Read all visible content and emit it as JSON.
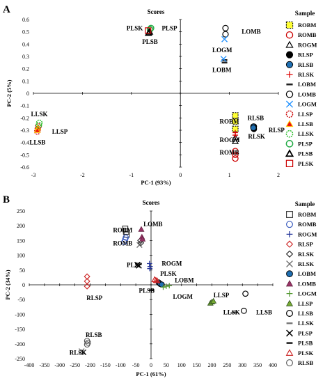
{
  "chart_data": [
    {
      "panel": "A",
      "type": "scatter",
      "title": "Scores",
      "xlabel": "PC-1 (93%)",
      "ylabel": "PC-2 (5%)",
      "xlim": [
        -3,
        2
      ],
      "ylim": [
        -0.6,
        0.6
      ],
      "xticks": [
        -3,
        -2,
        -1,
        0,
        1,
        2
      ],
      "yticks": [
        -0.6,
        -0.5,
        -0.4,
        -0.3,
        -0.2,
        -0.1,
        0,
        0.1,
        0.2,
        0.3,
        0.4,
        0.5,
        0.6
      ],
      "legend_title": "Sample",
      "legend_position": "right",
      "grid": false,
      "series": [
        {
          "name": "ROBM",
          "marker": "square-dashed-yellow",
          "points": [
            [
              1.12,
              -0.18
            ],
            [
              1.12,
              -0.23
            ],
            [
              1.12,
              -0.29
            ]
          ]
        },
        {
          "name": "ROMB",
          "marker": "circle-red",
          "points": [
            [
              1.12,
              -0.47
            ],
            [
              1.12,
              -0.5
            ],
            [
              1.12,
              -0.53
            ]
          ]
        },
        {
          "name": "ROGM",
          "marker": "triangle-open",
          "points": [
            [
              1.12,
              -0.36
            ],
            [
              1.12,
              -0.39
            ]
          ]
        },
        {
          "name": "RLSP",
          "marker": "circle-black",
          "points": [
            [
              1.5,
              -0.27
            ],
            [
              1.5,
              -0.29
            ]
          ]
        },
        {
          "name": "RLSB",
          "marker": "circle-blue",
          "points": [
            [
              1.49,
              -0.27
            ],
            [
              1.49,
              -0.28
            ]
          ]
        },
        {
          "name": "RLSK",
          "marker": "plus-red",
          "points": [
            [
              1.12,
              -0.32
            ],
            [
              1.12,
              -0.34
            ]
          ]
        },
        {
          "name": "LOBM",
          "marker": "dash-black",
          "points": [
            [
              0.9,
              0.25
            ],
            [
              0.9,
              0.27
            ]
          ]
        },
        {
          "name": "LOMB",
          "marker": "circle-open",
          "points": [
            [
              0.92,
              0.53
            ],
            [
              0.92,
              0.48
            ]
          ]
        },
        {
          "name": "LOGM",
          "marker": "x-blue",
          "points": [
            [
              0.88,
              0.28
            ],
            [
              0.9,
              0.44
            ]
          ]
        },
        {
          "name": "LLSP",
          "marker": "circle-red-dashed",
          "points": [
            [
              -2.9,
              -0.27
            ],
            [
              -2.91,
              -0.29
            ],
            [
              -2.92,
              -0.31
            ]
          ]
        },
        {
          "name": "LLSB",
          "marker": "triangle-red-yellow",
          "points": [
            [
              -2.91,
              -0.28
            ],
            [
              -2.92,
              -0.3
            ]
          ]
        },
        {
          "name": "LLSK",
          "marker": "circle-green-dashed",
          "points": [
            [
              -2.88,
              -0.24
            ],
            [
              -2.89,
              -0.26
            ]
          ]
        },
        {
          "name": "PLSP",
          "marker": "circle-green",
          "points": [
            [
              -0.6,
              0.53
            ],
            [
              -0.62,
              0.52
            ]
          ]
        },
        {
          "name": "PLSB",
          "marker": "triangle-black",
          "points": [
            [
              -0.63,
              0.5
            ],
            [
              -0.65,
              0.49
            ]
          ]
        },
        {
          "name": "PLSK",
          "marker": "square-red",
          "points": [
            [
              -0.66,
              0.51
            ]
          ]
        }
      ],
      "labels": [
        {
          "text": "PLSK",
          "x": -1.1,
          "y": 0.53
        },
        {
          "text": "PLSP",
          "x": -0.38,
          "y": 0.53
        },
        {
          "text": "PLSB",
          "x": -0.78,
          "y": 0.42
        },
        {
          "text": "LOMB",
          "x": 1.25,
          "y": 0.5
        },
        {
          "text": "LOGM",
          "x": 0.65,
          "y": 0.35
        },
        {
          "text": "LOBM",
          "x": 0.65,
          "y": 0.19
        },
        {
          "text": "LLSK",
          "x": -3.05,
          "y": -0.17
        },
        {
          "text": "LLSP",
          "x": -2.62,
          "y": -0.31
        },
        {
          "text": "LLSB",
          "x": -3.08,
          "y": -0.4
        },
        {
          "text": "RLSB",
          "x": 1.37,
          "y": -0.2
        },
        {
          "text": "ROBM",
          "x": 0.8,
          "y": -0.23
        },
        {
          "text": "RLSP",
          "x": 1.8,
          "y": -0.3
        },
        {
          "text": "RLSK",
          "x": 1.38,
          "y": -0.35
        },
        {
          "text": "ROGM",
          "x": 0.8,
          "y": -0.38
        },
        {
          "text": "ROMB",
          "x": 0.8,
          "y": -0.48
        }
      ]
    },
    {
      "panel": "B",
      "type": "scatter",
      "title": "Scores",
      "xlabel": "PC-1 (61%)",
      "ylabel": "PC-2 (34%)",
      "xlim": [
        -400,
        400
      ],
      "ylim": [
        -250,
        250
      ],
      "xticks": [
        -400,
        -350,
        -300,
        -250,
        -200,
        -150,
        -100,
        -50,
        0,
        50,
        100,
        150,
        200,
        250,
        300,
        350,
        400
      ],
      "yticks": [
        -250,
        -200,
        -150,
        -100,
        -50,
        0,
        50,
        100,
        150,
        200,
        250
      ],
      "legend_title": "Sample",
      "legend_position": "right",
      "grid": false,
      "series": [
        {
          "name": "ROBM",
          "marker": "square-open",
          "points": [
            [
              -85,
              190
            ],
            [
              -82,
              180
            ],
            [
              -80,
              170
            ]
          ]
        },
        {
          "name": "ROMB",
          "marker": "circle-blue-open",
          "points": [
            [
              -88,
              145
            ],
            [
              -85,
              153
            ],
            [
              -83,
              160
            ]
          ]
        },
        {
          "name": "ROGM",
          "marker": "plus-blue",
          "points": [
            [
              -5,
              72
            ],
            [
              -3,
              62
            ],
            [
              -4,
              55
            ]
          ]
        },
        {
          "name": "RLSP",
          "marker": "diamond-red-open",
          "points": [
            [
              -210,
              28
            ],
            [
              -210,
              12
            ],
            [
              -210,
              -5
            ]
          ]
        },
        {
          "name": "RLSK",
          "marker": "diamond-black-open",
          "points": [
            [
              -35,
              150
            ],
            [
              -33,
              142
            ]
          ]
        },
        {
          "name": "RLSK",
          "marker": "x-gray",
          "points": [
            [
              -38,
              135
            ],
            [
              -222,
              -228
            ],
            [
              -228,
              -225
            ]
          ]
        },
        {
          "name": "LOBM",
          "marker": "circle-blue",
          "points": [
            [
              25,
              8
            ],
            [
              30,
              3
            ],
            [
              35,
              1
            ]
          ]
        },
        {
          "name": "LOMB",
          "marker": "triangle-purple",
          "points": [
            [
              -32,
              188
            ],
            [
              -30,
              162
            ],
            [
              -28,
              155
            ]
          ]
        },
        {
          "name": "LOGM",
          "marker": "plus-green",
          "points": [
            [
              40,
              -8
            ],
            [
              50,
              -5
            ],
            [
              60,
              -3
            ]
          ]
        },
        {
          "name": "LLSP",
          "marker": "triangle-green",
          "points": [
            [
              195,
              -62
            ],
            [
              200,
              -58
            ],
            [
              205,
              -55
            ]
          ]
        },
        {
          "name": "LLSB",
          "marker": "circle-open",
          "points": [
            [
              305,
              -88
            ],
            [
              310,
              -30
            ]
          ]
        },
        {
          "name": "LLSK",
          "marker": "dash-gray",
          "points": [
            [
              270,
              -95
            ],
            [
              275,
              -93
            ]
          ]
        },
        {
          "name": "PLSP",
          "marker": "x-black",
          "points": [
            [
              -45,
              68
            ],
            [
              -40,
              65
            ]
          ]
        },
        {
          "name": "PLSB",
          "marker": "dash-black",
          "points": [
            [
              2,
              -18
            ]
          ]
        },
        {
          "name": "PLSK",
          "marker": "triangle-red-open",
          "points": [
            [
              12,
              18
            ],
            [
              16,
              15
            ],
            [
              20,
              14
            ]
          ]
        },
        {
          "name": "RLSB",
          "marker": "circle-gray-open",
          "points": [
            [
              -210,
              -190
            ],
            [
              -207,
              -196
            ],
            [
              -210,
              -202
            ]
          ]
        }
      ],
      "labels": [
        {
          "text": "LOMB",
          "x": -25,
          "y": 205
        },
        {
          "text": "ROBM",
          "x": -125,
          "y": 185
        },
        {
          "text": "ROMB",
          "x": -125,
          "y": 140
        },
        {
          "text": "PLSP",
          "x": -80,
          "y": 67
        },
        {
          "text": "ROGM",
          "x": 35,
          "y": 72
        },
        {
          "text": "PLSK",
          "x": 30,
          "y": 38
        },
        {
          "text": "LOBM",
          "x": 78,
          "y": 15
        },
        {
          "text": "PLSB",
          "x": -40,
          "y": -20
        },
        {
          "text": "LOGM",
          "x": 72,
          "y": -40
        },
        {
          "text": "RLSP",
          "x": -212,
          "y": -45
        },
        {
          "text": "LLSP",
          "x": 205,
          "y": -35
        },
        {
          "text": "LLSK",
          "x": 237,
          "y": -93
        },
        {
          "text": "LLSB",
          "x": 345,
          "y": -93
        },
        {
          "text": "RLSB",
          "x": -215,
          "y": -170
        },
        {
          "text": "RLSK",
          "x": -268,
          "y": -230
        }
      ]
    }
  ]
}
